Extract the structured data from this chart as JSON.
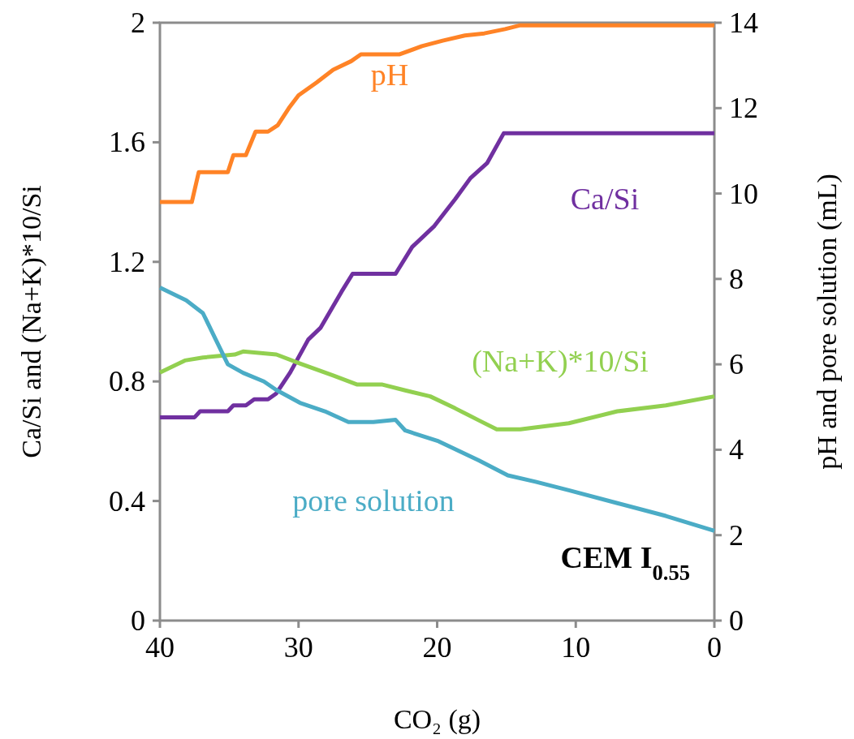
{
  "chart_data": {
    "type": "line",
    "xlabel": "CO₂ (g)",
    "ylabel": "Ca/Si and (Na+K)*10/Si",
    "y2label": "pH and pore solution (mL)",
    "xlim": [
      40,
      0
    ],
    "xticks": [
      40,
      30,
      20,
      10,
      0
    ],
    "ylim": [
      0,
      2
    ],
    "yticks": [
      0,
      0.4,
      0.8,
      1.2,
      1.6,
      2
    ],
    "y2lim": [
      0,
      14
    ],
    "y2ticks": [
      0,
      2,
      4,
      6,
      8,
      10,
      12,
      14
    ],
    "grid": false,
    "marker": "none",
    "line_style": "solid",
    "annotations": [
      "CEM I$_{0.55}$"
    ],
    "series": [
      {
        "name": "pH",
        "color": "#ff8326",
        "axis": "y2",
        "x": [
          40,
          37.7,
          37.2,
          35.1,
          34.7,
          33.8,
          33.1,
          32.2,
          31.5,
          30.7,
          30,
          28.7,
          27.5,
          26.2,
          25.5,
          22.7,
          21.1,
          19.6,
          18,
          16.6,
          15.1,
          14,
          0
        ],
        "values": [
          9.8,
          9.8,
          10.5,
          10.5,
          10.9,
          10.9,
          11.45,
          11.45,
          11.6,
          12.0,
          12.3,
          12.6,
          12.9,
          13.1,
          13.26,
          13.26,
          13.45,
          13.58,
          13.7,
          13.75,
          13.85,
          13.94,
          13.94
        ]
      },
      {
        "name": "Ca/Si",
        "color": "#7030a0",
        "x": [
          40,
          37.5,
          37.1,
          35.1,
          34.7,
          33.8,
          33.2,
          32.2,
          31.6,
          30.6,
          29.3,
          28.4,
          26.9,
          26.1,
          23,
          21.8,
          20.2,
          18.7,
          17.6,
          16.4,
          15.2,
          0
        ],
        "values": [
          0.68,
          0.68,
          0.7,
          0.7,
          0.72,
          0.72,
          0.74,
          0.74,
          0.76,
          0.83,
          0.94,
          0.98,
          1.1,
          1.16,
          1.16,
          1.25,
          1.32,
          1.41,
          1.48,
          1.53,
          1.63,
          1.63
        ]
      },
      {
        "name": "(Na+K)*10/Si",
        "color": "#92d050",
        "x": [
          40,
          38.2,
          36.9,
          34.6,
          34,
          31.6,
          29.9,
          27.5,
          25.8,
          24,
          22.3,
          20.5,
          18.7,
          17,
          15.7,
          14,
          10.5,
          7,
          3.5,
          0
        ],
        "values": [
          0.83,
          0.87,
          0.88,
          0.89,
          0.9,
          0.89,
          0.86,
          0.82,
          0.79,
          0.79,
          0.77,
          0.75,
          0.71,
          0.67,
          0.64,
          0.64,
          0.66,
          0.7,
          0.72,
          0.75
        ]
      },
      {
        "name": "pore solution",
        "color": "#4bacc6",
        "axis": "y2",
        "x": [
          40,
          38.1,
          36.9,
          36,
          35.1,
          34,
          32.5,
          31.6,
          29.9,
          28.1,
          26.4,
          24.6,
          23,
          22.3,
          19.9,
          17,
          14.9,
          12.9,
          10.5,
          7,
          3.5,
          0
        ],
        "values": [
          7.8,
          7.5,
          7.2,
          6.6,
          6.0,
          5.8,
          5.6,
          5.4,
          5.1,
          4.9,
          4.65,
          4.65,
          4.7,
          4.45,
          4.2,
          3.75,
          3.4,
          3.25,
          3.05,
          2.75,
          2.45,
          2.1
        ]
      }
    ]
  }
}
